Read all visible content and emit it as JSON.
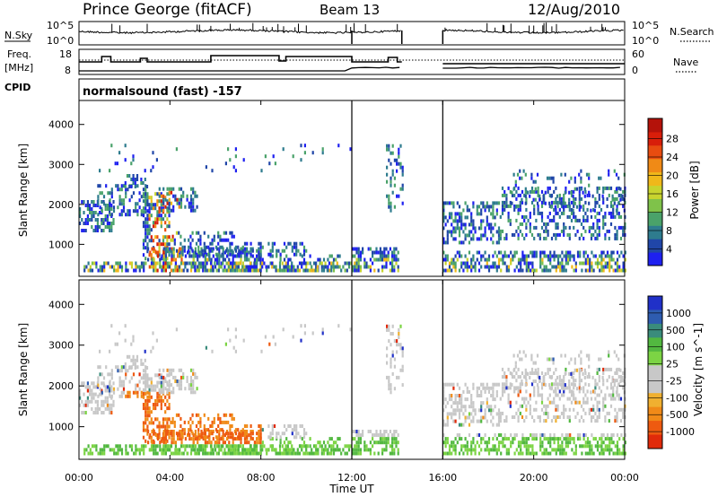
{
  "chart_data": {
    "type": "heatmap",
    "title": "Prince George (fitACF)",
    "beam": "Beam 13",
    "date": "12/Aug/2010",
    "cpid": "normalsound (fast) -157",
    "xlabel": "Time UT",
    "x_ticks": [
      "00:00",
      "04:00",
      "08:00",
      "12:00",
      "16:00",
      "20:00",
      "00:00"
    ],
    "xlim_hours": [
      0,
      24
    ],
    "data_gap_hours": [
      14.2,
      16.0
    ],
    "top_panels": {
      "nsky": {
        "label": "N.Sky",
        "right_label": "N.Search",
        "ticks": [
          "10^5",
          "10^0"
        ],
        "right_ticks": [
          "10^5",
          "10^0"
        ]
      },
      "freq": {
        "label_lines": [
          "Freq.",
          "[MHz]"
        ],
        "right_label": "Nave",
        "ticks": [
          "18",
          "8"
        ],
        "right_ticks": [
          "60",
          "0"
        ]
      },
      "cpid_label": "CPID"
    },
    "panels": [
      {
        "name": "power",
        "ylabel": "Slant Range [km]",
        "y_ticks": [
          "1000",
          "2000",
          "3000",
          "4000"
        ],
        "ylim": [
          200,
          4600
        ],
        "colorbar": {
          "label": "Power [dB]",
          "ticks": [
            "4",
            "8",
            "12",
            "16",
            "20",
            "24",
            "28"
          ],
          "colors": [
            "#1e20f0",
            "#2046a8",
            "#2e7c8e",
            "#4aa26a",
            "#7fc24a",
            "#c8d42e",
            "#f0b81a",
            "#f08a16",
            "#e84c10",
            "#d81e0a",
            "#b4120a"
          ]
        }
      },
      {
        "name": "velocity",
        "ylabel": "Slant Range [km]",
        "y_ticks": [
          "1000",
          "2000",
          "3000",
          "4000"
        ],
        "ylim": [
          200,
          4600
        ],
        "colorbar": {
          "label": "Velocity [m s^-1]",
          "ticks": [
            "1000",
            "500",
            "100",
            "25",
            "-25",
            "-100",
            "-500",
            "-1000"
          ],
          "colors": [
            "#2030c8",
            "#2e5cb0",
            "#3a8c7c",
            "#52b840",
            "#7cd444",
            "#c8c8c8",
            "#c8c8c8",
            "#f0b030",
            "#f08a18",
            "#ee5a10",
            "#e02a0a"
          ]
        }
      }
    ]
  }
}
